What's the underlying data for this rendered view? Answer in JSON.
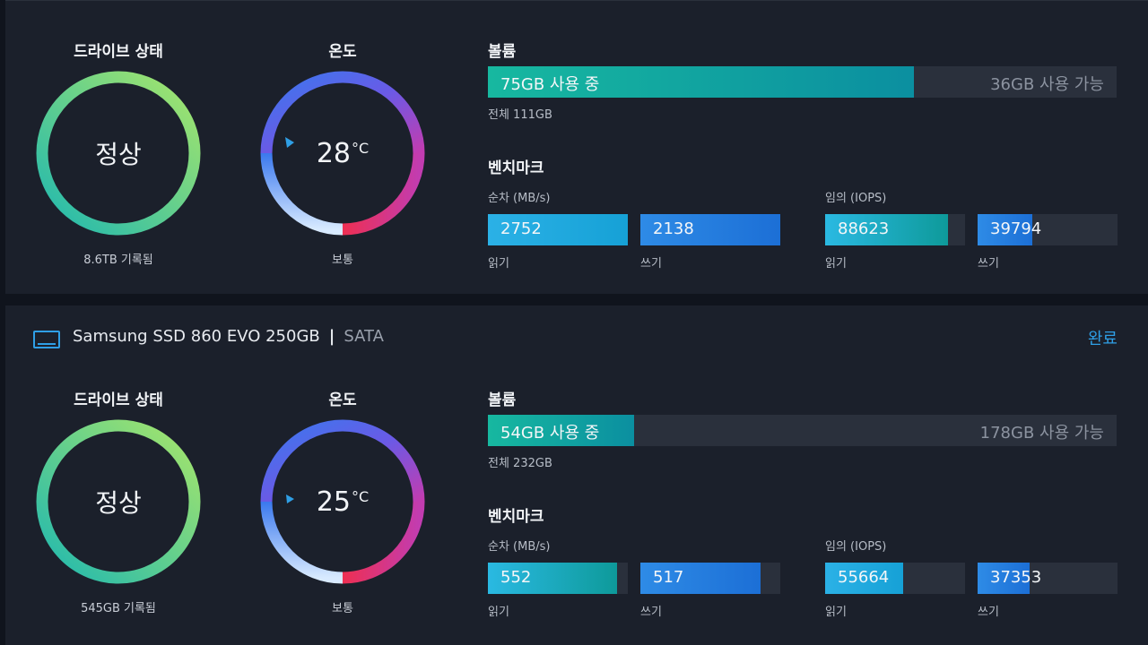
{
  "labels": {
    "drive_status": "드라이브 상태",
    "temperature": "온도",
    "volume": "볼륨",
    "benchmark": "벤치마크",
    "sequential": "순차 (MB/s)",
    "random": "임의 (IOPS)",
    "read": "읽기",
    "write": "쓰기"
  },
  "drives": [
    {
      "status": "정상",
      "written": "8.6TB 기록됨",
      "temp_value": "28",
      "temp_unit": "°C",
      "temp_state": "보통",
      "volume": {
        "used_label": "75GB 사용 중",
        "free_label": "36GB 사용 가능",
        "total_label": "전체 111GB",
        "used_fraction": 0.677
      },
      "bench": {
        "seq_read": {
          "value": "2752",
          "fill": 1.0
        },
        "seq_write": {
          "value": "2138",
          "fill": 1.0
        },
        "rand_read": {
          "value": "88623",
          "fill": 0.88
        },
        "rand_write": {
          "value": "39794",
          "fill": 0.39
        }
      }
    },
    {
      "name": "Samsung SSD 860 EVO 250GB",
      "interface": "SATA",
      "state_link": "완료",
      "status": "정상",
      "written": "545GB 기록됨",
      "temp_value": "25",
      "temp_unit": "°C",
      "temp_state": "보통",
      "volume": {
        "used_label": "54GB 사용 중",
        "free_label": "178GB 사용 가능",
        "total_label": "전체 232GB",
        "used_fraction": 0.233
      },
      "bench": {
        "seq_read": {
          "value": "552",
          "fill": 0.92
        },
        "seq_write": {
          "value": "517",
          "fill": 0.86
        },
        "rand_read": {
          "value": "55664",
          "fill": 0.56
        },
        "rand_write": {
          "value": "37353",
          "fill": 0.37
        }
      }
    }
  ],
  "colors": {
    "accent": "#2f9fe6",
    "volume_fill": "#17b8a0",
    "track": "#2a303c",
    "status_ring_start": "#a8e66a",
    "status_ring_end": "#1fb8b0",
    "temp_ring_blue": "#3a78ee",
    "temp_ring_purple": "#8a4fe0",
    "temp_ring_red": "#e8345a"
  },
  "icons": {
    "drive_icon": "monitor-icon",
    "temp_marker": "triangle-marker-icon"
  }
}
